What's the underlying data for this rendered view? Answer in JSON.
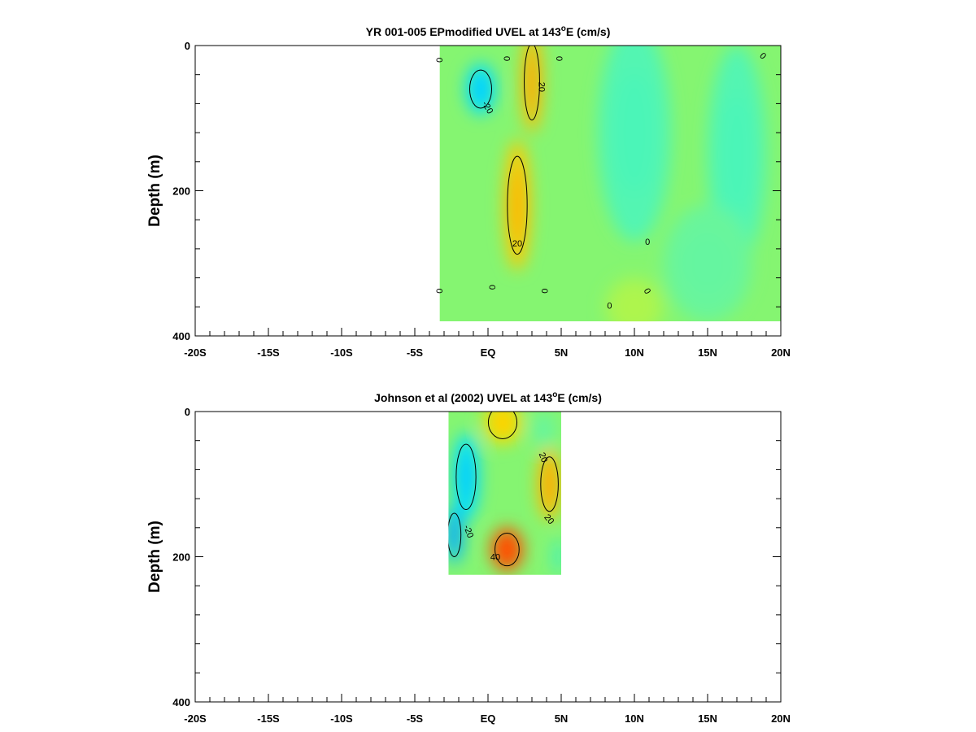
{
  "chart_data": [
    {
      "type": "heatmap",
      "title": "YR 001-005 EPmodified UVEL at 143",
      "title_superscript": "o",
      "title_suffix": "E (cm/s)",
      "ylabel": "Depth (m)",
      "xlabel": "",
      "x_range": [
        -20,
        20
      ],
      "ylim": [
        0,
        400
      ],
      "y_inverted": true,
      "x_ticks": [
        {
          "value": -20,
          "label": "-20S"
        },
        {
          "value": -15,
          "label": "-15S"
        },
        {
          "value": -10,
          "label": "-10S"
        },
        {
          "value": -5,
          "label": "-5S"
        },
        {
          "value": 0,
          "label": "EQ"
        },
        {
          "value": 5,
          "label": "5N"
        },
        {
          "value": 10,
          "label": "10N"
        },
        {
          "value": 15,
          "label": "15N"
        },
        {
          "value": 20,
          "label": "20N"
        }
      ],
      "y_ticks": [
        {
          "value": 0,
          "label": "0"
        },
        {
          "value": 200,
          "label": "200"
        },
        {
          "value": 400,
          "label": "400"
        }
      ],
      "data_extent": {
        "lat": [
          -3.3,
          20
        ],
        "depth": [
          0,
          380
        ]
      },
      "features": [
        {
          "lat": -0.5,
          "depth": 60,
          "value": -22,
          "lat_spread": 1.0,
          "depth_spread": 35
        },
        {
          "lat": 3.0,
          "depth": 50,
          "value": 28,
          "lat_spread": 0.7,
          "depth_spread": 70
        },
        {
          "lat": 2.0,
          "depth": 220,
          "value": 26,
          "lat_spread": 0.9,
          "depth_spread": 90
        },
        {
          "lat": 10.0,
          "depth": 120,
          "value": -9,
          "lat_spread": 2.5,
          "depth_spread": 150
        },
        {
          "lat": 17.0,
          "depth": 150,
          "value": -9,
          "lat_spread": 2.0,
          "depth_spread": 150
        },
        {
          "lat": 15.0,
          "depth": 300,
          "value": -6,
          "lat_spread": 3.0,
          "depth_spread": 80
        },
        {
          "lat": 10.0,
          "depth": 360,
          "value": 6,
          "lat_spread": 2.0,
          "depth_spread": 40
        }
      ],
      "contour_labels": [
        {
          "lat": -3.3,
          "depth": 20,
          "text": "0",
          "rotate": 90
        },
        {
          "lat": 1.3,
          "depth": 18,
          "text": "0",
          "rotate": 90
        },
        {
          "lat": 4.9,
          "depth": 18,
          "text": "0",
          "rotate": 90
        },
        {
          "lat": 3.7,
          "depth": 57,
          "text": "20",
          "rotate": 90
        },
        {
          "lat": 0.0,
          "depth": 85,
          "text": "-20",
          "rotate": 60
        },
        {
          "lat": 2.0,
          "depth": 272,
          "text": "20",
          "rotate": 0
        },
        {
          "lat": 10.9,
          "depth": 270,
          "text": "0",
          "rotate": 0
        },
        {
          "lat": -3.3,
          "depth": 338,
          "text": "0",
          "rotate": 90
        },
        {
          "lat": 0.3,
          "depth": 333,
          "text": "0",
          "rotate": 90
        },
        {
          "lat": 3.9,
          "depth": 338,
          "text": "0",
          "rotate": 90
        },
        {
          "lat": 8.3,
          "depth": 358,
          "text": "0",
          "rotate": 0
        },
        {
          "lat": 10.9,
          "depth": 338,
          "text": "0",
          "rotate": 60
        },
        {
          "lat": 18.8,
          "depth": 14,
          "text": "0",
          "rotate": 45
        }
      ]
    },
    {
      "type": "heatmap",
      "title": "Johnson et al (2002) UVEL at 143",
      "title_superscript": "o",
      "title_suffix": "E (cm/s)",
      "ylabel": "Depth (m)",
      "xlabel": "",
      "x_range": [
        -20,
        20
      ],
      "ylim": [
        0,
        400
      ],
      "y_inverted": true,
      "x_ticks": [
        {
          "value": -20,
          "label": "-20S"
        },
        {
          "value": -15,
          "label": "-15S"
        },
        {
          "value": -10,
          "label": "-10S"
        },
        {
          "value": -5,
          "label": "-5S"
        },
        {
          "value": 0,
          "label": "EQ"
        },
        {
          "value": 5,
          "label": "5N"
        },
        {
          "value": 10,
          "label": "10N"
        },
        {
          "value": 15,
          "label": "15N"
        },
        {
          "value": 20,
          "label": "20N"
        }
      ],
      "y_ticks": [
        {
          "value": 0,
          "label": "0"
        },
        {
          "value": 200,
          "label": "200"
        },
        {
          "value": 400,
          "label": "400"
        }
      ],
      "data_extent": {
        "lat": [
          -2.7,
          5
        ],
        "depth": [
          0,
          225
        ]
      },
      "features": [
        {
          "lat": -1.5,
          "depth": 90,
          "value": -22,
          "lat_spread": 0.9,
          "depth_spread": 60
        },
        {
          "lat": -2.3,
          "depth": 170,
          "value": -26,
          "lat_spread": 0.6,
          "depth_spread": 40
        },
        {
          "lat": 1.3,
          "depth": 190,
          "value": 40,
          "lat_spread": 1.1,
          "depth_spread": 30
        },
        {
          "lat": 4.2,
          "depth": 100,
          "value": 28,
          "lat_spread": 0.8,
          "depth_spread": 50
        },
        {
          "lat": 1.0,
          "depth": 15,
          "value": 22,
          "lat_spread": 1.3,
          "depth_spread": 30
        },
        {
          "lat": 3.8,
          "depth": 25,
          "value": -6,
          "lat_spread": 0.8,
          "depth_spread": 25
        },
        {
          "lat": 4.8,
          "depth": 200,
          "value": -14,
          "lat_spread": 0.3,
          "depth_spread": 25
        }
      ],
      "contour_labels": [
        {
          "lat": 3.8,
          "depth": 63,
          "text": "20",
          "rotate": 70
        },
        {
          "lat": -1.3,
          "depth": 165,
          "text": "-20",
          "rotate": 70
        },
        {
          "lat": 4.2,
          "depth": 148,
          "text": "20",
          "rotate": 50
        },
        {
          "lat": 0.5,
          "depth": 200,
          "text": "40",
          "rotate": 0
        }
      ]
    }
  ]
}
